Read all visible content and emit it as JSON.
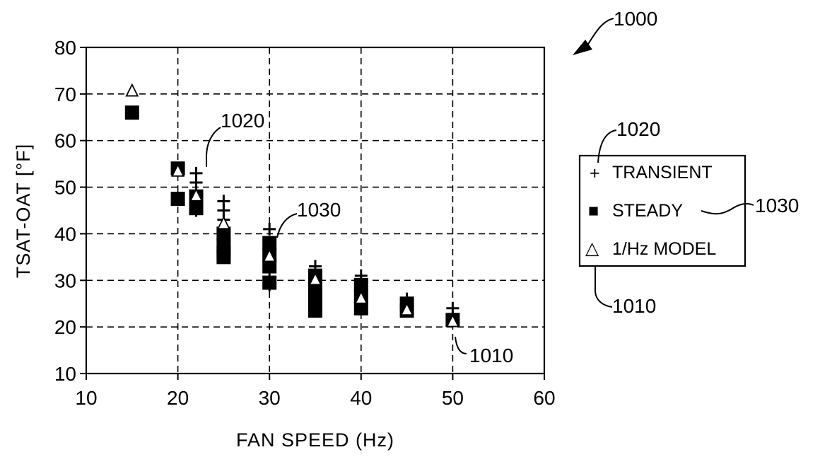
{
  "figure_ref": "1000",
  "chart_data": {
    "type": "scatter",
    "title": "",
    "xlabel": "FAN SPEED (Hz)",
    "ylabel": "TSAT-OAT [°F]",
    "xlim": [
      10,
      60
    ],
    "ylim": [
      10,
      80
    ],
    "x_ticks": [
      10,
      20,
      30,
      40,
      50,
      60
    ],
    "y_ticks": [
      10,
      20,
      30,
      40,
      50,
      60,
      70,
      80
    ],
    "grid": true,
    "legend_position": "right",
    "series": [
      {
        "name": "TRANSIENT",
        "marker": "plus",
        "ref": "1020",
        "x": [
          22,
          22,
          22,
          22,
          22,
          25,
          25,
          25,
          25,
          25,
          25,
          25,
          30,
          30,
          30,
          30,
          30,
          35,
          35,
          35,
          35,
          40,
          40,
          40,
          40,
          45,
          45,
          50,
          50
        ],
        "y": [
          53,
          51,
          49,
          47,
          45,
          47,
          45,
          43,
          41,
          39,
          37,
          35,
          41,
          38,
          35,
          32,
          29,
          33,
          30,
          27,
          24,
          31,
          29,
          27,
          25,
          26,
          24,
          24,
          22
        ]
      },
      {
        "name": "STEADY",
        "marker": "square",
        "ref": "1030",
        "x": [
          15,
          20,
          20,
          22,
          22,
          25,
          25,
          25,
          25,
          30,
          30,
          30,
          30,
          35,
          35,
          35,
          35,
          40,
          40,
          40,
          45,
          45,
          50
        ],
        "y": [
          66,
          54,
          47.5,
          48,
          45.5,
          40,
          37.5,
          36,
          35,
          38,
          35.5,
          33,
          29.5,
          31,
          28,
          25,
          23.5,
          29,
          26.5,
          24,
          25,
          23.5,
          21.5
        ]
      },
      {
        "name": "1/Hz MODEL",
        "marker": "triangle",
        "ref": "1010",
        "x": [
          15,
          20,
          22,
          25,
          30,
          35,
          40,
          45,
          50
        ],
        "y": [
          70.5,
          53.3,
          48,
          42,
          35,
          30,
          26,
          23.5,
          21
        ]
      }
    ],
    "annotations": [
      {
        "text": "1020",
        "target": "TRANSIENT"
      },
      {
        "text": "1030",
        "target": "STEADY"
      },
      {
        "text": "1010",
        "target": "1/Hz MODEL"
      }
    ]
  },
  "legend": {
    "items": [
      {
        "symbol": "+",
        "label": "TRANSIENT"
      },
      {
        "symbol": "■",
        "label": "STEADY"
      },
      {
        "symbol": "△",
        "label": "1/Hz MODEL"
      }
    ],
    "refs": {
      "transient": "1020",
      "steady": "1030",
      "model": "1010"
    }
  }
}
